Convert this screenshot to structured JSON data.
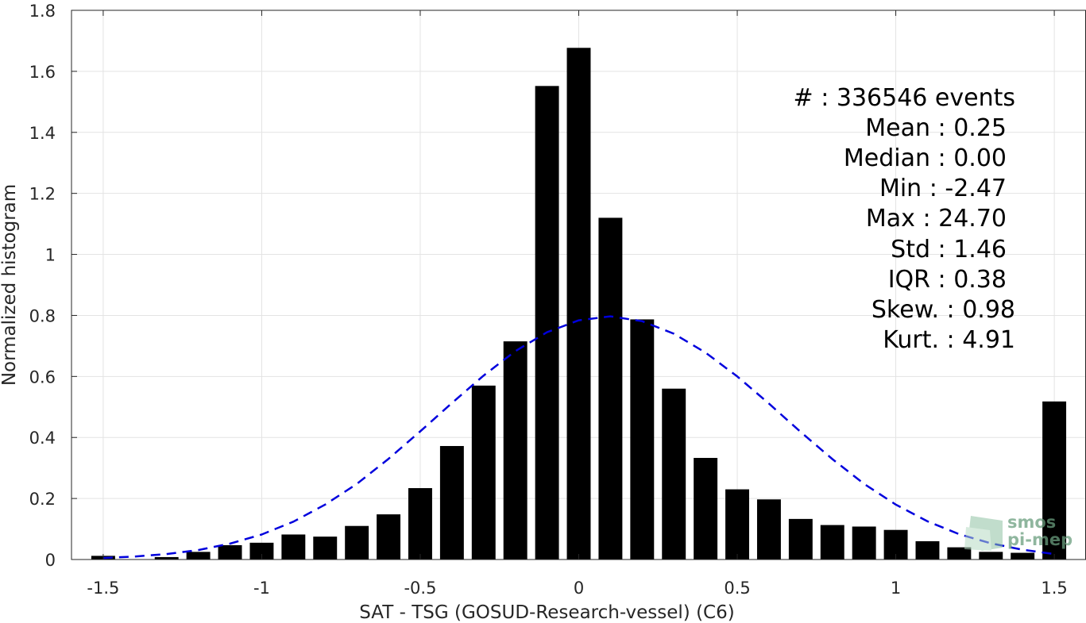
{
  "chart_data": {
    "type": "bar",
    "xlabel": "SAT - TSG (GOSUD-Research-vessel) (C6)",
    "ylabel": "Normalized histogram",
    "xlim": [
      -1.6,
      1.6
    ],
    "ylim": [
      0,
      1.8
    ],
    "xticks": [
      -1.5,
      -1,
      -0.5,
      0,
      0.5,
      1,
      1.5
    ],
    "xtick_labels": [
      "-1.5",
      "-1",
      "-0.5",
      "0",
      "0.5",
      "1",
      "1.5"
    ],
    "yticks": [
      0,
      0.2,
      0.4,
      0.6,
      0.8,
      1,
      1.2,
      1.4,
      1.6,
      1.8
    ],
    "ytick_labels": [
      "0",
      "0.2",
      "0.4",
      "0.6",
      "0.8",
      "1",
      "1.2",
      "1.4",
      "1.6",
      "1.8"
    ],
    "grid": true,
    "bar_color": "#000000",
    "bar_width": 0.075,
    "bars": {
      "x": [
        -1.5,
        -1.4,
        -1.3,
        -1.2,
        -1.1,
        -1.0,
        -0.9,
        -0.8,
        -0.7,
        -0.6,
        -0.5,
        -0.4,
        -0.3,
        -0.2,
        -0.1,
        0.0,
        0.1,
        0.2,
        0.3,
        0.4,
        0.5,
        0.6,
        0.7,
        0.8,
        0.9,
        1.0,
        1.1,
        1.2,
        1.3,
        1.4,
        1.5
      ],
      "values": [
        0.012,
        0.0,
        0.008,
        0.025,
        0.047,
        0.055,
        0.082,
        0.075,
        0.11,
        0.148,
        0.234,
        0.372,
        0.57,
        0.715,
        1.552,
        1.677,
        1.12,
        0.787,
        0.56,
        0.333,
        0.23,
        0.197,
        0.133,
        0.113,
        0.108,
        0.097,
        0.06,
        0.04,
        0.025,
        0.022,
        0.518
      ]
    },
    "fit_curve": {
      "style": "dashed",
      "color": "#0000dd",
      "x": [
        -1.5,
        -1.4,
        -1.3,
        -1.2,
        -1.1,
        -1.0,
        -0.9,
        -0.8,
        -0.7,
        -0.6,
        -0.5,
        -0.4,
        -0.3,
        -0.2,
        -0.1,
        0.0,
        0.1,
        0.2,
        0.3,
        0.4,
        0.5,
        0.6,
        0.7,
        0.8,
        0.9,
        1.0,
        1.1,
        1.2,
        1.3,
        1.4,
        1.5
      ],
      "y": [
        0.005,
        0.01,
        0.018,
        0.031,
        0.052,
        0.082,
        0.124,
        0.18,
        0.248,
        0.33,
        0.42,
        0.513,
        0.603,
        0.683,
        0.745,
        0.784,
        0.797,
        0.781,
        0.74,
        0.678,
        0.6,
        0.511,
        0.418,
        0.329,
        0.248,
        0.18,
        0.125,
        0.083,
        0.053,
        0.032,
        0.018
      ]
    },
    "annotations": [
      "#  : 336546 events",
      "Mean : 0.25",
      "Median : 0.00",
      "Min : -2.47",
      "Max : 24.70",
      "Std : 1.46",
      "IQR : 0.38",
      "Skew. : 0.98",
      "Kurt. : 4.91"
    ]
  },
  "watermark": {
    "line1": "smos",
    "line2": "pi-mep",
    "color": "#6a9e7e"
  }
}
